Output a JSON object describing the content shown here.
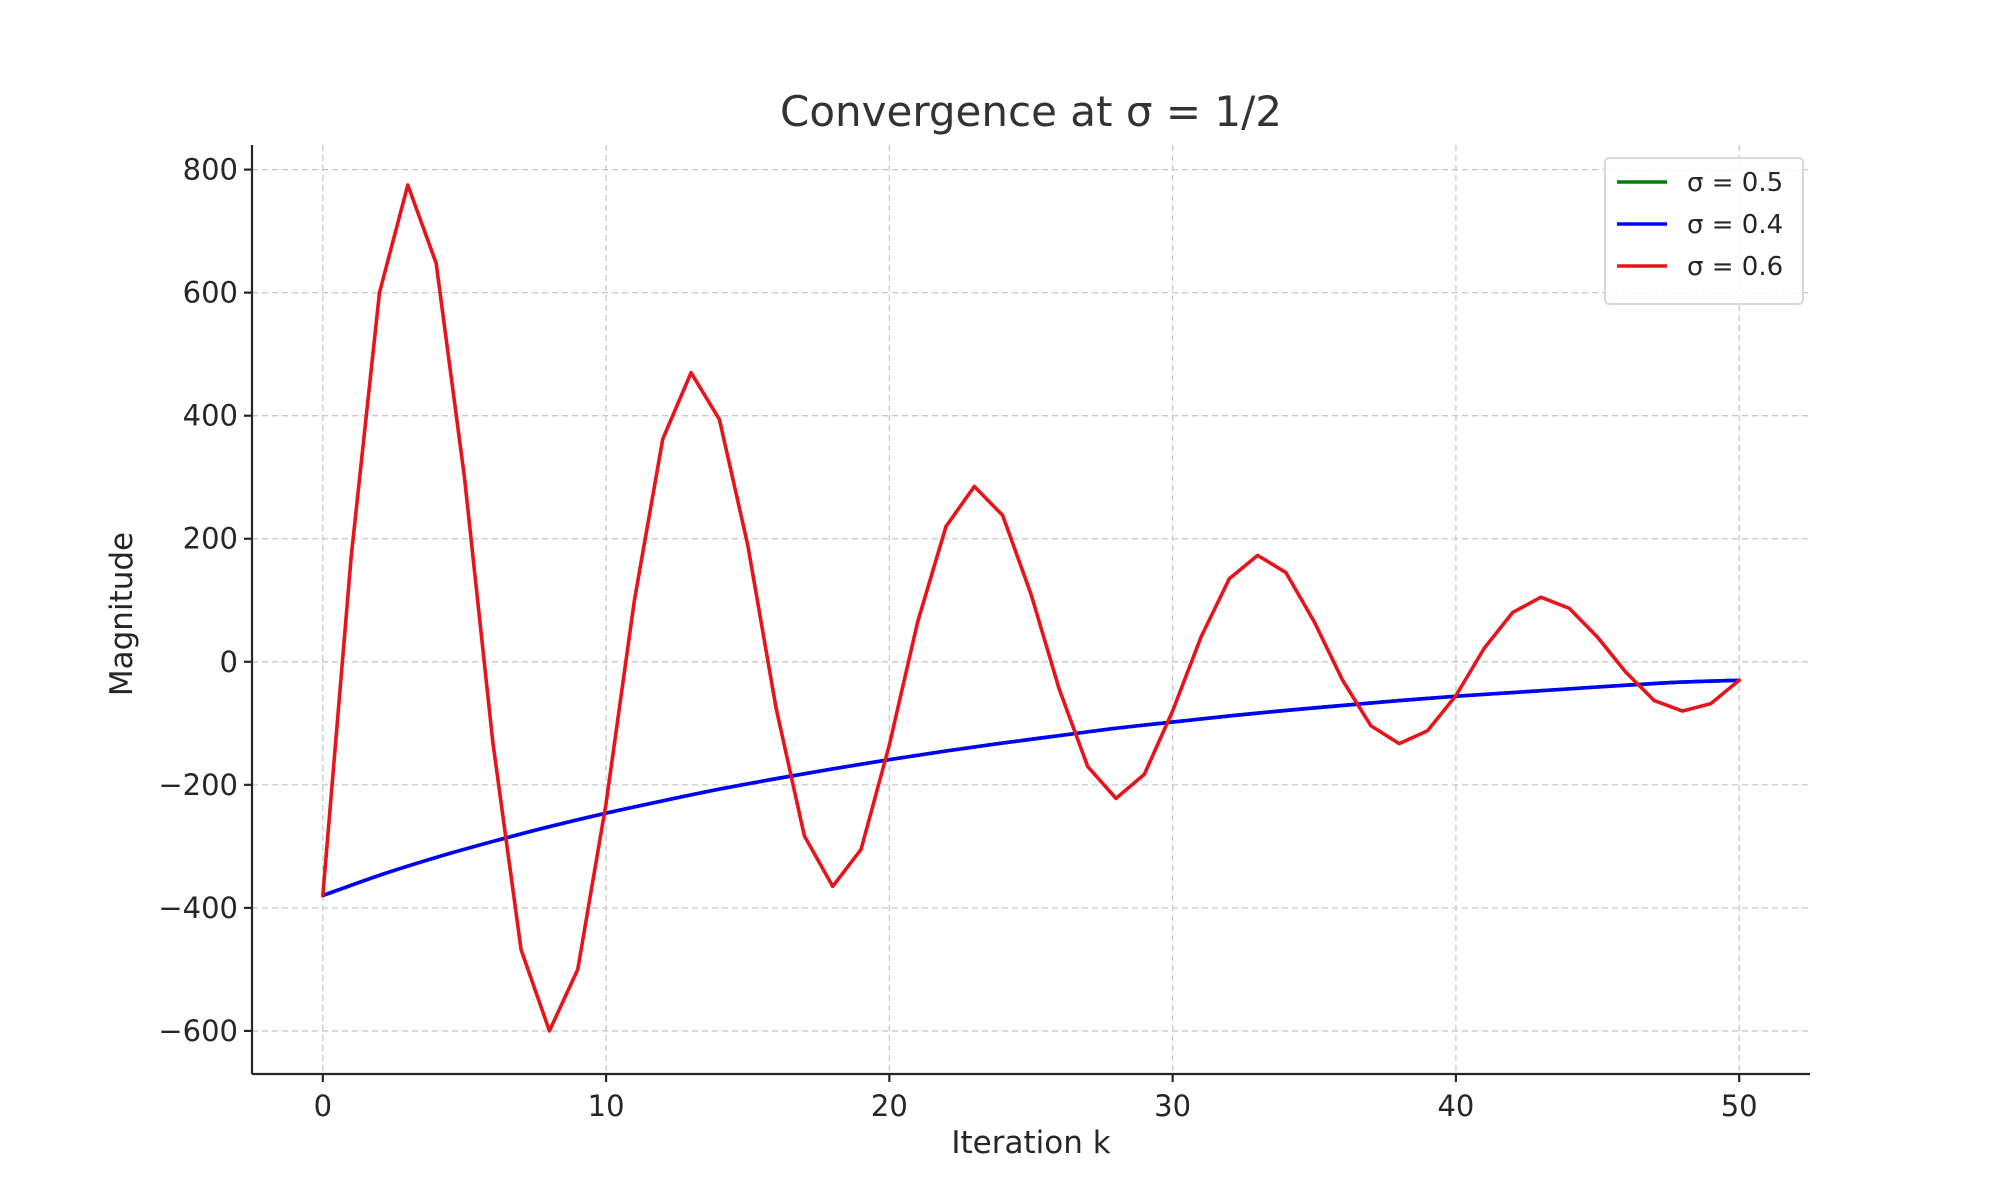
{
  "chart_data": {
    "type": "line",
    "title": "Convergence at σ = 1/2",
    "xlabel": "Iteration k",
    "ylabel": "Magnitude",
    "xlim": [
      -2.5,
      52.5
    ],
    "ylim": [
      -670,
      840
    ],
    "xticks": [
      0,
      10,
      20,
      30,
      40,
      50
    ],
    "yticks": [
      -600,
      -400,
      -200,
      0,
      200,
      400,
      600,
      800
    ],
    "xtick_labels": [
      "0",
      "10",
      "20",
      "30",
      "40",
      "50"
    ],
    "ytick_labels": [
      "−600",
      "−400",
      "−200",
      "0",
      "200",
      "400",
      "600",
      "800"
    ],
    "grid": true,
    "legend_position": "top-right",
    "series": [
      {
        "name": "σ = 0.5",
        "color": "#008000",
        "curve": "smooth",
        "x": [
          0,
          2,
          4,
          6,
          8,
          10,
          12,
          14,
          16,
          18,
          20,
          22,
          24,
          26,
          28,
          30,
          32,
          34,
          36,
          38,
          40,
          42,
          44,
          46,
          48,
          50
        ],
        "y": [
          -380,
          -347,
          -318,
          -292,
          -268,
          -246,
          -226,
          -207,
          -190,
          -174,
          -159,
          -145,
          -132,
          -120,
          -108,
          -98,
          -88,
          -79,
          -71,
          -63,
          -56,
          -50,
          -44,
          -38,
          -33,
          -30
        ]
      },
      {
        "name": "σ = 0.4",
        "color": "#0000ff",
        "curve": "smooth",
        "x": [
          0,
          2,
          4,
          6,
          8,
          10,
          12,
          14,
          16,
          18,
          20,
          22,
          24,
          26,
          28,
          30,
          32,
          34,
          36,
          38,
          40,
          42,
          44,
          46,
          48,
          50
        ],
        "y": [
          -380,
          -347,
          -318,
          -292,
          -268,
          -246,
          -226,
          -207,
          -190,
          -174,
          -159,
          -145,
          -132,
          -120,
          -108,
          -98,
          -88,
          -79,
          -71,
          -63,
          -56,
          -50,
          -44,
          -38,
          -33,
          -30
        ]
      },
      {
        "name": "σ = 0.6",
        "color": "#e8141c",
        "curve": "linear",
        "x": [
          0,
          1,
          2,
          3,
          4,
          5,
          6,
          7,
          8,
          9,
          10,
          11,
          12,
          13,
          14,
          15,
          16,
          17,
          18,
          19,
          20,
          21,
          22,
          23,
          24,
          25,
          26,
          27,
          28,
          29,
          30,
          31,
          32,
          33,
          34,
          35,
          36,
          37,
          38,
          39,
          40,
          41,
          42,
          43,
          44,
          45,
          46,
          47,
          48,
          49,
          50
        ],
        "y": [
          -380,
          170,
          600,
          775,
          648,
          300,
          -130,
          -468,
          -600,
          -500,
          -230,
          100,
          362,
          470,
          394,
          190,
          -75,
          -283,
          -365,
          -305,
          -135,
          65,
          220,
          285,
          238,
          110,
          -45,
          -170,
          -222,
          -183,
          -80,
          40,
          135,
          173,
          145,
          65,
          -30,
          -104,
          -133,
          -112,
          -55,
          22,
          80,
          105,
          87,
          40,
          -17,
          -63,
          -80,
          -68,
          -30
        ]
      }
    ]
  }
}
